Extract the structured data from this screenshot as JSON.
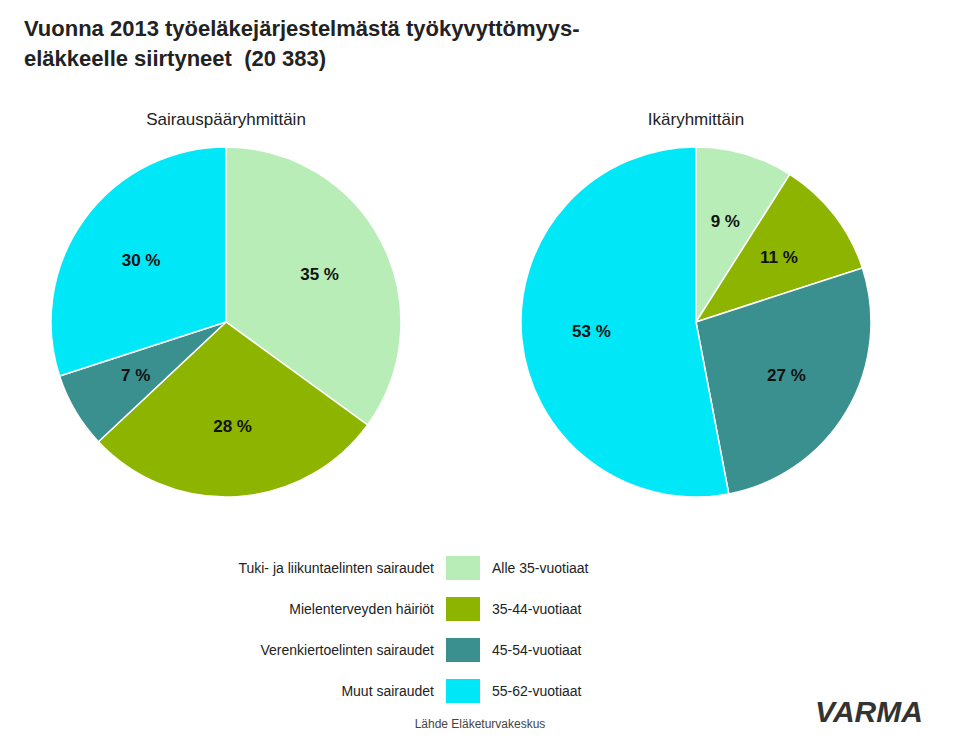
{
  "chart_data": [
    {
      "type": "pie",
      "title": "Vuonna 2013 työeläkejärjestelmästä työkyvyttömyys-\neläkkeelle siirtyneet  (20 383)",
      "subtitle": "Sairauspääryhmittäin",
      "categories": [
        "Tuki- ja liikuntaelinten sairaudet",
        "Mielenterveyden häiriöt",
        "Verenkiertoelinten sairaudet",
        "Muut sairaudet"
      ],
      "values": [
        35,
        28,
        7,
        30
      ],
      "value_labels": [
        "35 %",
        "28 %",
        "7 %",
        "30 %"
      ],
      "colors": [
        "#b8edb8",
        "#8db500",
        "#3a8f8f",
        "#00e8f8"
      ],
      "data_labels": true,
      "legend": "bottom",
      "annotations": [
        "Lähde Eläketurvakeskus",
        "VARMA"
      ]
    },
    {
      "type": "pie",
      "subtitle": "Ikäryhmittäin",
      "categories": [
        "Alle 35-vuotiaat",
        "35-44-vuotiaat",
        "45-54-vuotiaat",
        "55-62-vuotiaat"
      ],
      "values": [
        9,
        11,
        27,
        53
      ],
      "value_labels": [
        "9 %",
        "11 %",
        "27 %",
        "53 %"
      ],
      "colors": [
        "#b8edb8",
        "#8db500",
        "#3a8f8f",
        "#00e8f8"
      ],
      "data_labels": true,
      "legend": "bottom"
    }
  ]
}
